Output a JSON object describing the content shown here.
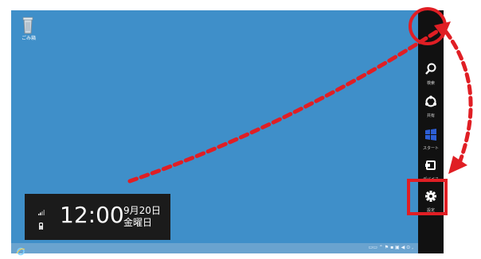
{
  "desktop": {
    "recycle_bin_label": "ごみ箱"
  },
  "clock": {
    "time": "12:00",
    "date": "9月20日",
    "weekday": "金曜日"
  },
  "charms": {
    "items": [
      {
        "label": "検索",
        "icon": "search-icon"
      },
      {
        "label": "共有",
        "icon": "share-icon"
      },
      {
        "label": "スタート",
        "icon": "windows-logo-icon"
      },
      {
        "label": "デバイス",
        "icon": "devices-icon"
      },
      {
        "label": "設定",
        "icon": "gear-icon"
      }
    ]
  },
  "taskbar": {
    "tray_text": "▭▭ ⌃ ⚑ ▪ ▣ ◀ ⊙ ,"
  },
  "colors": {
    "desktop": "#3f8fc9",
    "charms_bar": "#111111",
    "annotation_red": "#e01e24"
  }
}
